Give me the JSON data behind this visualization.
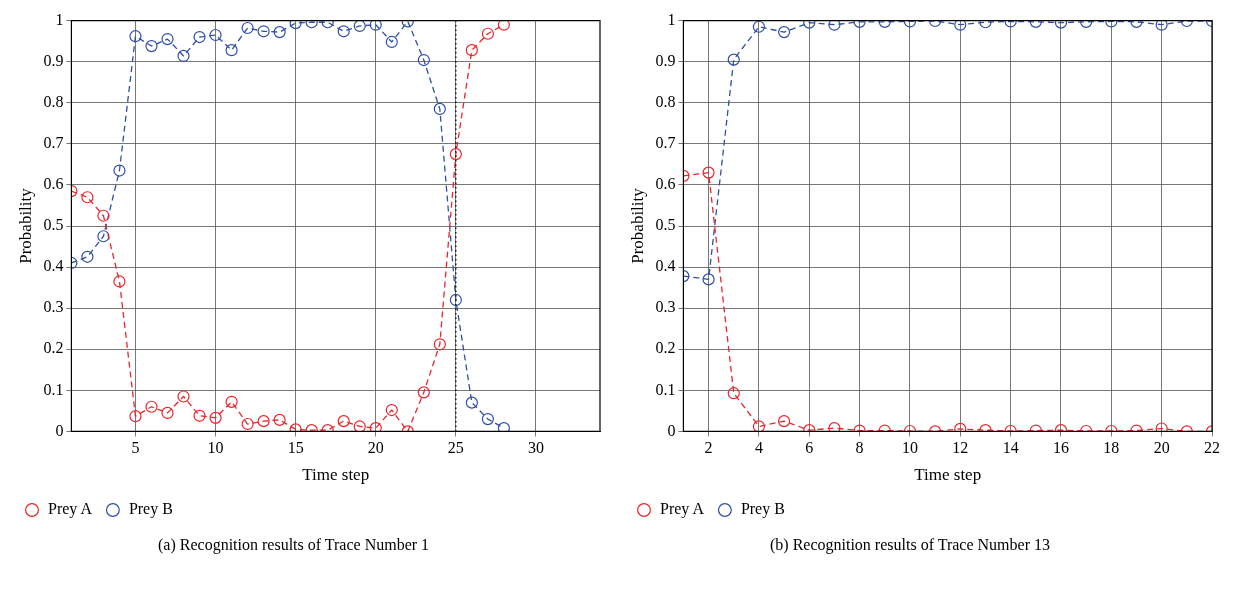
{
  "chart_data": [
    {
      "type": "line",
      "xlabel": "Time step",
      "ylabel": "Probability",
      "x": [
        1,
        2,
        3,
        4,
        5,
        6,
        7,
        8,
        9,
        10,
        11,
        12,
        13,
        14,
        15,
        16,
        17,
        18,
        19,
        20,
        21,
        22,
        23,
        24,
        25,
        26,
        27,
        28
      ],
      "series": [
        {
          "name": "Prey A",
          "color": "#e8262b",
          "values": [
            0.585,
            0.57,
            0.525,
            0.365,
            0.037,
            0.06,
            0.045,
            0.085,
            0.038,
            0.033,
            0.072,
            0.018,
            0.025,
            0.028,
            0.005,
            0.003,
            0.003,
            0.025,
            0.012,
            0.008,
            0.052,
            0,
            0.095,
            0.212,
            0.675,
            0.928,
            0.968,
            0.99
          ]
        },
        {
          "name": "Prey B",
          "color": "#2e4fa3",
          "values": [
            0.41,
            0.425,
            0.475,
            0.635,
            0.962,
            0.938,
            0.955,
            0.914,
            0.96,
            0.965,
            0.928,
            0.982,
            0.974,
            0.972,
            0.994,
            0.996,
            0.996,
            0.974,
            0.987,
            0.99,
            0.948,
            0.998,
            0.904,
            0.785,
            0.32,
            0.07,
            0.03,
            0.008
          ]
        }
      ],
      "xlim": [
        1,
        34
      ],
      "xticks": [
        5,
        10,
        15,
        20,
        25,
        30
      ],
      "ylim": [
        0,
        1
      ],
      "yticks": [
        0,
        0.1,
        0.2,
        0.3,
        0.4,
        0.5,
        0.6,
        0.7,
        0.8,
        0.9,
        1
      ],
      "ref_lines": [
        {
          "axis": "x",
          "value": 25,
          "color": "#000000",
          "line_style": "dotted"
        }
      ],
      "grid": true,
      "legend": "bottom left",
      "marker": "circle",
      "line_style": "dashed",
      "annotations": [
        "(a)  Recognition results of Trace Number 1"
      ]
    },
    {
      "type": "line",
      "xlabel": "Time step",
      "ylabel": "Probability",
      "x": [
        1,
        2,
        3,
        4,
        5,
        6,
        7,
        8,
        9,
        10,
        11,
        12,
        13,
        14,
        15,
        16,
        17,
        18,
        19,
        20,
        21,
        22
      ],
      "series": [
        {
          "name": "Prey A",
          "color": "#e8262b",
          "values": [
            0.622,
            0.63,
            0.093,
            0.012,
            0.025,
            0.003,
            0.008,
            0.002,
            0.002,
            0.001,
            0,
            0.006,
            0.003,
            0.001,
            0.002,
            0.003,
            0.001,
            0.001,
            0.002,
            0.007,
            0,
            0
          ]
        },
        {
          "name": "Prey B",
          "color": "#2e4fa3",
          "values": [
            0.378,
            0.37,
            0.905,
            0.985,
            0.972,
            0.995,
            0.99,
            0.997,
            0.997,
            0.998,
            0.999,
            0.99,
            0.996,
            0.998,
            0.997,
            0.995,
            0.997,
            0.998,
            0.997,
            0.99,
            0.999,
            0.999
          ]
        }
      ],
      "xlim": [
        1,
        22
      ],
      "xticks": [
        2,
        4,
        6,
        8,
        10,
        12,
        14,
        16,
        18,
        20,
        22
      ],
      "ylim": [
        0,
        1
      ],
      "yticks": [
        0,
        0.1,
        0.2,
        0.3,
        0.4,
        0.5,
        0.6,
        0.7,
        0.8,
        0.9,
        1
      ],
      "grid": true,
      "legend": "bottom left",
      "marker": "circle",
      "line_style": "dashed",
      "annotations": [
        "(b)  Recognition results of Trace Number 13"
      ]
    }
  ]
}
